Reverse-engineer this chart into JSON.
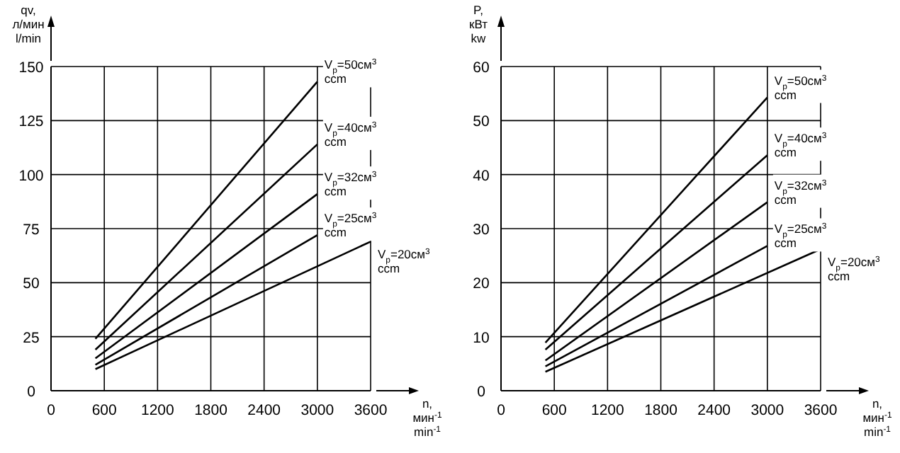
{
  "chart_data": [
    {
      "type": "line",
      "xlabel": "n,\nмин$^{-1}$\nmin$^{-1}$",
      "ylabel": "qv,\nл/мин\nl/min",
      "xlim": [
        0,
        3600
      ],
      "xticks": [
        0,
        600,
        1200,
        1800,
        2400,
        3000,
        3600
      ],
      "ylim": [
        0,
        150
      ],
      "yticks": [
        0,
        25,
        50,
        75,
        100,
        125,
        150
      ],
      "grid": true,
      "series": [
        {
          "name": "V$_{p}$=50см$^{3}$\nccm",
          "color": "#000000",
          "x": [
            500,
            3000
          ],
          "values": [
            24,
            143
          ]
        },
        {
          "name": "V$_{p}$=40см$^{3}$\nccm",
          "color": "#000000",
          "x": [
            500,
            3000
          ],
          "values": [
            19,
            114
          ]
        },
        {
          "name": "V$_{p}$=32см$^{3}$\nccm",
          "color": "#000000",
          "x": [
            500,
            3000
          ],
          "values": [
            15,
            91
          ]
        },
        {
          "name": "V$_{p}$=25см$^{3}$\nccm",
          "color": "#000000",
          "x": [
            500,
            3000
          ],
          "values": [
            12,
            72
          ]
        },
        {
          "name": "V$_{p}$=20см$^{3}$\nccm",
          "color": "#000000",
          "x": [
            500,
            3600
          ],
          "values": [
            10,
            69
          ]
        }
      ]
    },
    {
      "type": "line",
      "xlabel": "n,\nмин$^{-1}$\nmin$^{-1}$",
      "ylabel": "P,\nкВт\nkw",
      "xlim": [
        0,
        3600
      ],
      "xticks": [
        0,
        600,
        1200,
        1800,
        2400,
        3000,
        3600
      ],
      "ylim": [
        0,
        60
      ],
      "yticks": [
        0,
        10,
        20,
        30,
        40,
        50,
        60
      ],
      "grid": true,
      "series": [
        {
          "name": "V$_{p}$=50см$^{3}$\nccm",
          "color": "#000000",
          "x": [
            500,
            3000
          ],
          "values": [
            8.9,
            54.3
          ]
        },
        {
          "name": "V$_{p}$=40см$^{3}$\nccm",
          "color": "#000000",
          "x": [
            500,
            3000
          ],
          "values": [
            7.6,
            43.6
          ]
        },
        {
          "name": "V$_{p}$=32см$^{3}$\nccm",
          "color": "#000000",
          "x": [
            500,
            3000
          ],
          "values": [
            5.6,
            34.9
          ]
        },
        {
          "name": "V$_{p}$=25см$^{3}$\nccm",
          "color": "#000000",
          "x": [
            500,
            3000
          ],
          "values": [
            4.5,
            26.8
          ]
        },
        {
          "name": "V$_{p}$=20см$^{3}$\nccm",
          "color": "#000000",
          "x": [
            500,
            3600
          ],
          "values": [
            3.5,
            26.2
          ]
        }
      ]
    }
  ]
}
